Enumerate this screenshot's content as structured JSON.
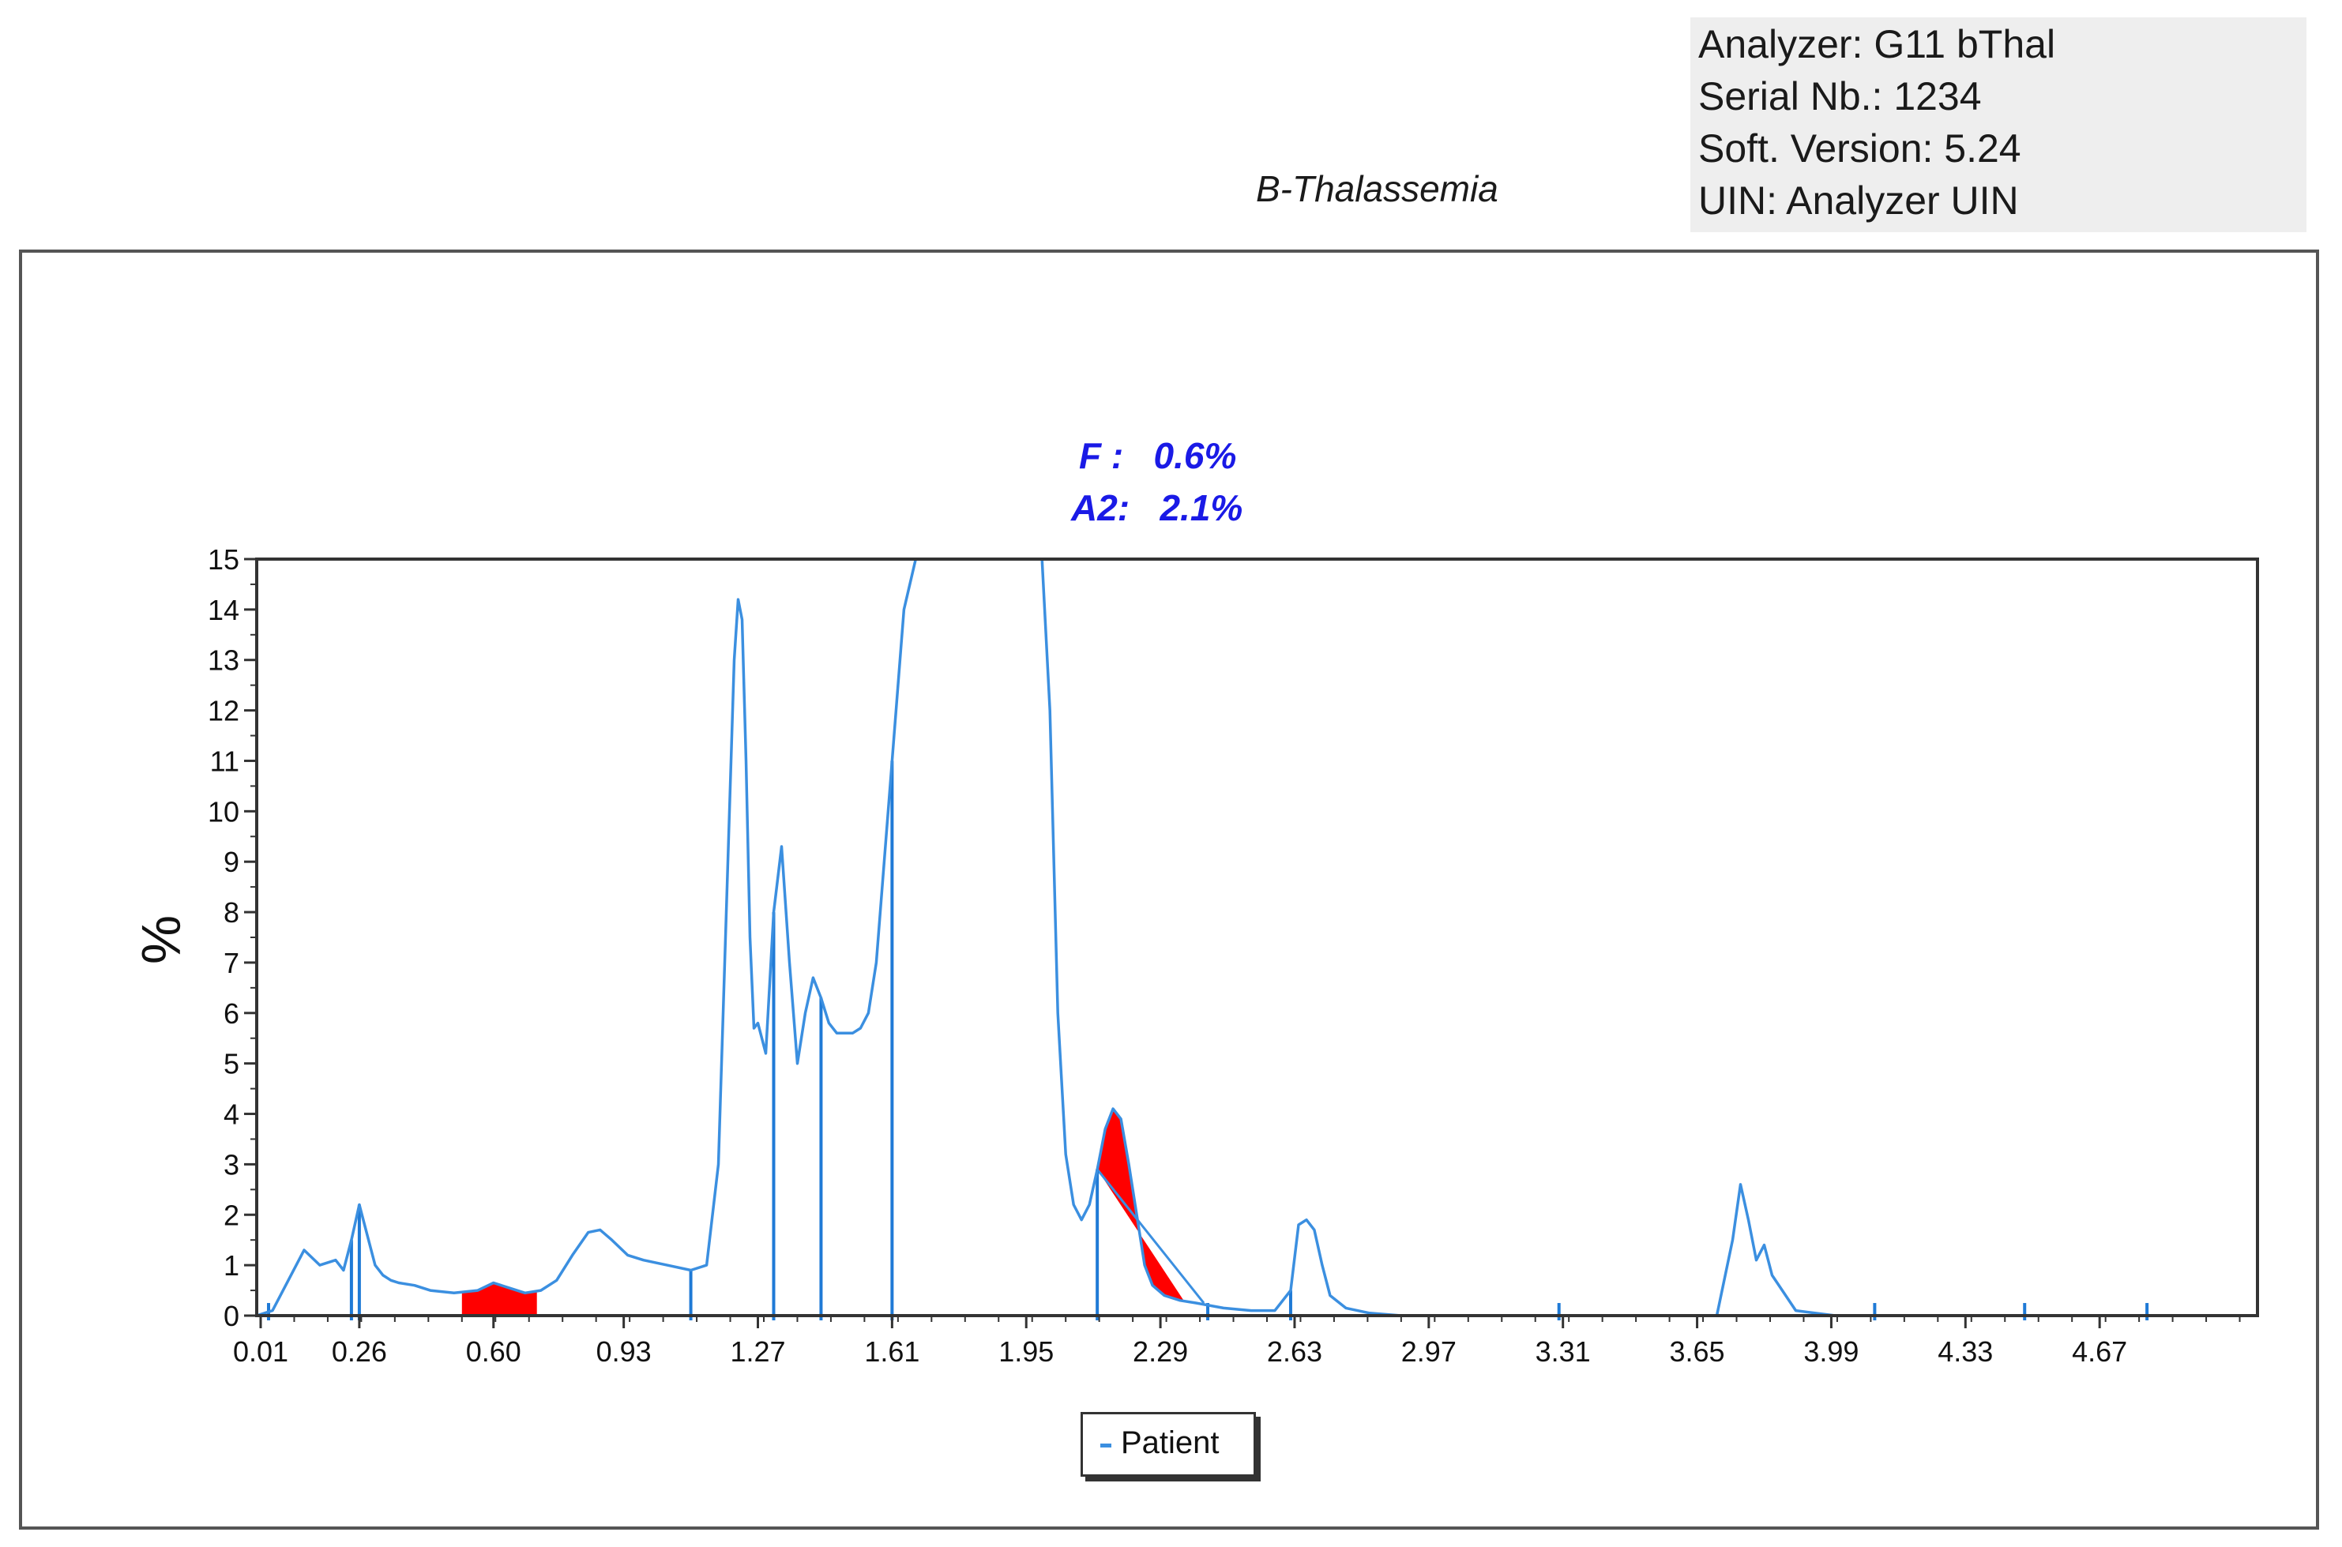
{
  "info": {
    "analyzer": "Analyzer: G11 bThal",
    "serial": "Serial Nb.: 1234",
    "version": "Soft. Version: 5.24",
    "uin": "UIN: Analyzer UIN"
  },
  "annotations": {
    "f_value": "F :   0.6%",
    "a2_value": "A2:   2.1%"
  },
  "colors": {
    "trace": "#3b8fe0",
    "highlight": "#ff0000",
    "axis": "#333333",
    "marker": "#1f7ad6"
  },
  "chart_data": {
    "type": "line",
    "title": "B-Thalassemia",
    "xlabel": "",
    "ylabel": "%",
    "xlim": [
      0.0,
      5.07
    ],
    "ylim": [
      0,
      15
    ],
    "x_ticks": [
      "0.01",
      "0.26",
      "0.60",
      "0.93",
      "1.27",
      "1.61",
      "1.95",
      "2.29",
      "2.63",
      "2.97",
      "3.31",
      "3.65",
      "3.99",
      "4.33",
      "4.67"
    ],
    "y_ticks": [
      "0",
      "1",
      "2",
      "3",
      "4",
      "5",
      "6",
      "7",
      "8",
      "9",
      "10",
      "11",
      "12",
      "13",
      "14",
      "15"
    ],
    "legend": {
      "position": "bottom-center",
      "entries": [
        "Patient"
      ]
    },
    "series": [
      {
        "name": "Patient",
        "x": [
          0.0,
          0.04,
          0.08,
          0.12,
          0.16,
          0.2,
          0.22,
          0.24,
          0.26,
          0.28,
          0.3,
          0.32,
          0.34,
          0.36,
          0.4,
          0.44,
          0.5,
          0.56,
          0.6,
          0.64,
          0.68,
          0.72,
          0.76,
          0.8,
          0.84,
          0.87,
          0.9,
          0.94,
          0.98,
          1.04,
          1.1,
          1.14,
          1.17,
          1.19,
          1.21,
          1.22,
          1.23,
          1.24,
          1.25,
          1.26,
          1.27,
          1.29,
          1.31,
          1.33,
          1.35,
          1.37,
          1.39,
          1.41,
          1.43,
          1.45,
          1.47,
          1.49,
          1.51,
          1.53,
          1.55,
          1.57,
          1.6,
          1.64,
          1.67,
          1.7,
          1.72,
          1.74,
          1.76,
          1.99,
          2.01,
          2.03,
          2.05,
          2.07,
          2.09,
          2.11,
          2.13,
          2.15,
          2.17,
          2.19,
          2.21,
          2.23,
          2.25,
          2.27,
          2.3,
          2.34,
          2.38,
          2.45,
          2.52,
          2.58,
          2.62,
          2.64,
          2.66,
          2.68,
          2.7,
          2.72,
          2.76,
          2.82,
          2.9,
          3.0,
          3.2,
          3.5,
          3.7,
          3.74,
          3.76,
          3.78,
          3.8,
          3.82,
          3.84,
          3.9,
          4.0,
          4.3,
          5.07
        ],
        "values": [
          0.0,
          0.1,
          0.7,
          1.3,
          1.0,
          1.1,
          0.9,
          1.5,
          2.2,
          1.6,
          1.0,
          0.8,
          0.7,
          0.65,
          0.6,
          0.5,
          0.45,
          0.5,
          0.65,
          0.55,
          0.45,
          0.5,
          0.7,
          1.2,
          1.65,
          1.7,
          1.5,
          1.2,
          1.1,
          1.0,
          0.9,
          1.0,
          3.0,
          8.0,
          13.0,
          14.2,
          13.8,
          11.0,
          7.5,
          5.7,
          5.8,
          5.2,
          8.0,
          9.3,
          7.0,
          5.0,
          6.0,
          6.7,
          6.3,
          5.8,
          5.6,
          5.6,
          5.6,
          5.7,
          6.0,
          7.0,
          10.0,
          14.0,
          15.0,
          15.0,
          15.0,
          15.0,
          15.0,
          15.0,
          12.0,
          6.0,
          3.2,
          2.2,
          1.9,
          2.2,
          2.9,
          3.7,
          4.1,
          3.9,
          3.0,
          2.0,
          1.0,
          0.6,
          0.4,
          0.3,
          0.25,
          0.15,
          0.1,
          0.1,
          0.5,
          1.8,
          1.9,
          1.7,
          1.0,
          0.4,
          0.15,
          0.05,
          0.0,
          0.0,
          0.0,
          0.0,
          0.0,
          1.5,
          2.6,
          1.9,
          1.1,
          1.4,
          0.8,
          0.1,
          0.0,
          0.0,
          0.0
        ]
      }
    ],
    "shaded_peaks": [
      {
        "name": "F",
        "x_start": 0.52,
        "x_end": 0.71,
        "percent": 0.6
      },
      {
        "name": "A2",
        "x_start": 2.13,
        "x_end": 2.35,
        "percent": 2.1
      }
    ],
    "integration_markers": [
      0.03,
      0.24,
      0.26,
      1.1,
      1.31,
      1.43,
      1.61,
      2.13,
      2.41,
      2.62,
      3.3,
      4.1,
      4.48,
      4.79
    ]
  }
}
